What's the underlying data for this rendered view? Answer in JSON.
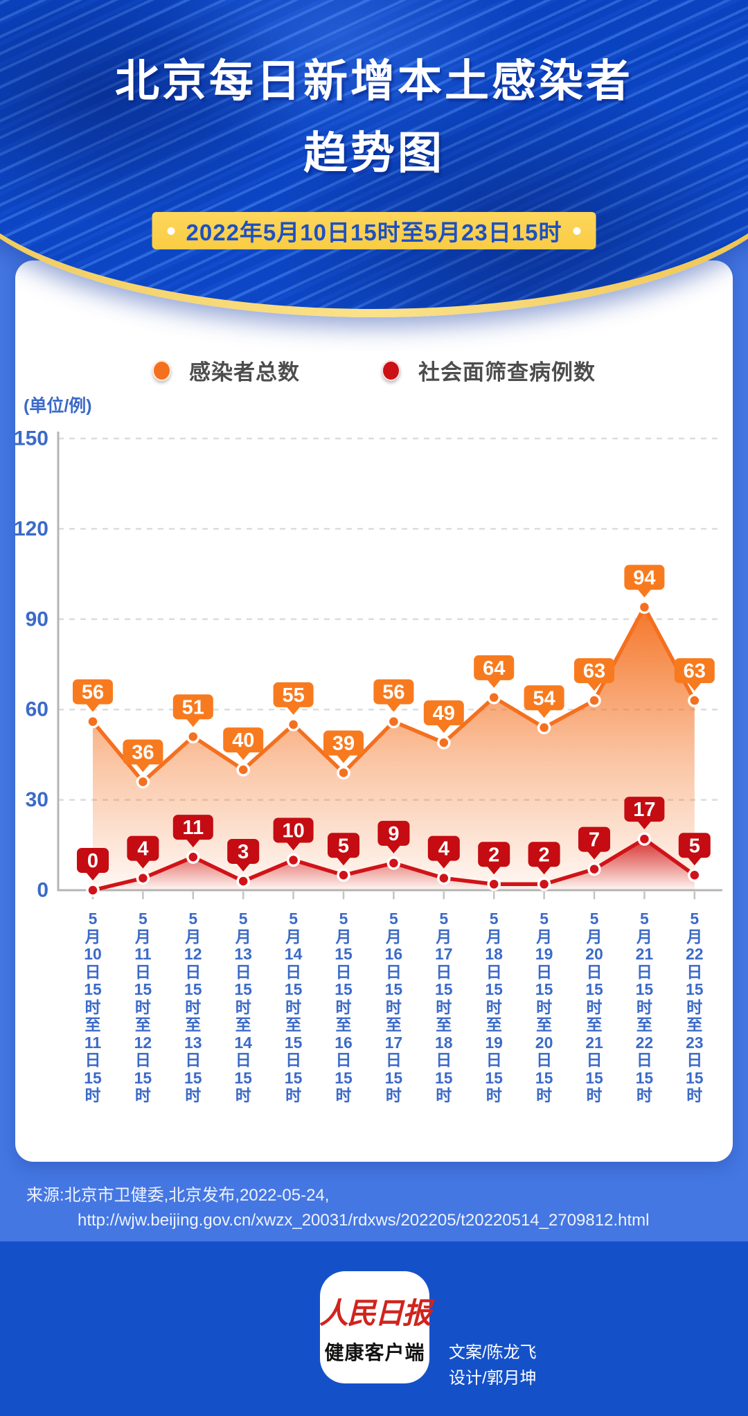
{
  "header": {
    "title_line1": "北京每日新增本土感染者",
    "title_line2": "趋势图",
    "date_badge": "2022年5月10日15时至5月23日15时"
  },
  "legend": [
    {
      "label": "感染者总数",
      "color": "#f4701f"
    },
    {
      "label": "社会面筛查病例数",
      "color": "#cb1016"
    }
  ],
  "chart_data": {
    "type": "line",
    "title": "北京每日新增本土感染者趋势图",
    "subtitle": "2022年5月10日15时至5月23日15时",
    "unit_label": "(单位/例)",
    "x_labels": [
      "5月10日15时至11日15时",
      "5月11日15时至12日15时",
      "5月12日15时至13日15时",
      "5月13日15时至14日15时",
      "5月14日15时至15日15时",
      "5月15日15时至16日15时",
      "5月16日15时至17日15时",
      "5月17日15时至18日15时",
      "5月18日15时至19日15时",
      "5月19日15时至20日15时",
      "5月20日15时至21日15时",
      "5月21日15时至22日15时",
      "5月22日15时至23日15时"
    ],
    "series": [
      {
        "name": "感染者总数",
        "color": "#f4701f",
        "tag_color": "#f87a1e",
        "values": [
          56,
          36,
          51,
          40,
          55,
          39,
          56,
          49,
          64,
          54,
          63,
          94,
          63
        ],
        "area": true
      },
      {
        "name": "社会面筛查病例数",
        "color": "#d01318",
        "tag_color": "#c40c12",
        "values": [
          0,
          4,
          11,
          3,
          10,
          5,
          9,
          4,
          2,
          2,
          7,
          17,
          5
        ],
        "area": true
      }
    ],
    "y_ticks": [
      0,
      30,
      60,
      90,
      120,
      150
    ],
    "ylim": [
      0,
      150
    ],
    "grid": "horizontal-dashed",
    "legend_position": "top"
  },
  "source": {
    "line1": "来源:北京市卫健委,北京发布,2022-05-24,",
    "line2": "http://wjw.beijing.gov.cn/xwzx_20031/rdxws/202205/t20220514_2709812.html"
  },
  "footer": {
    "logo_line1": "人民日报",
    "logo_line2": "健康客户端",
    "credit_line1": "文案/陈龙飞",
    "credit_line2": "设计/郭月坤"
  }
}
